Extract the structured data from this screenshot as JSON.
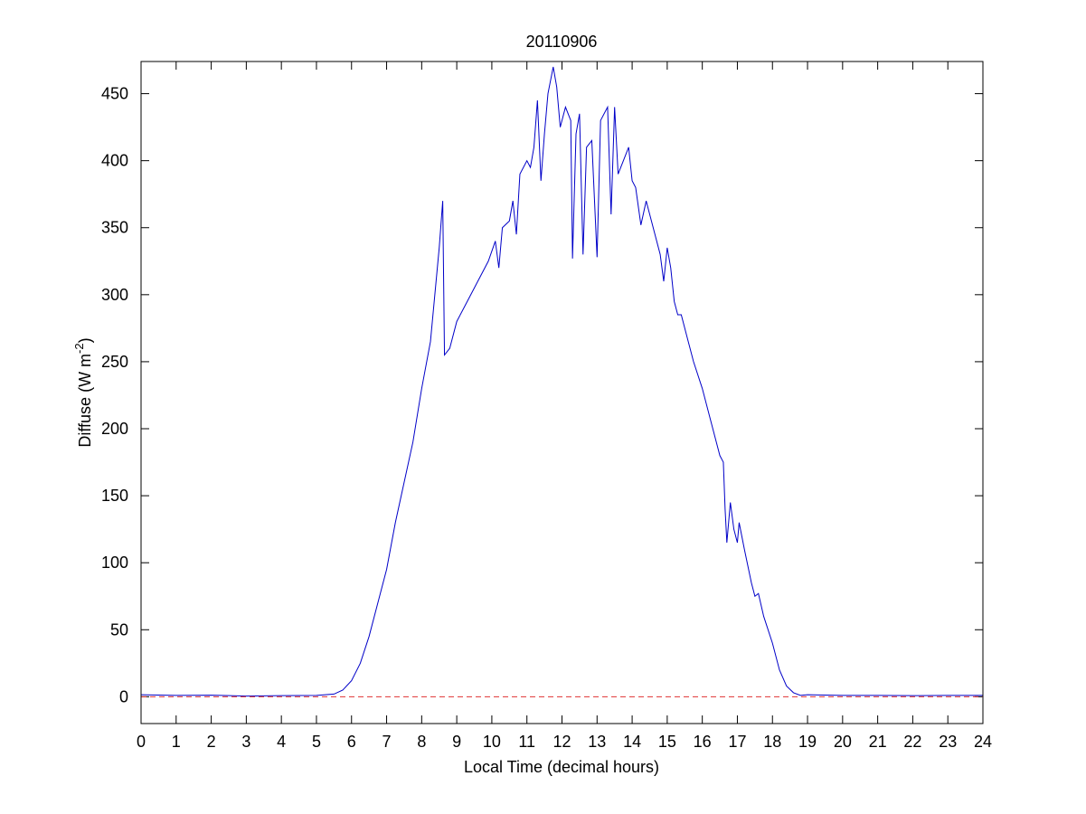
{
  "chart_data": {
    "type": "line",
    "title": "20110906",
    "xlabel": "Local Time (decimal hours)",
    "ylabel": [
      "Diffuse (W m",
      "-2",
      ")"
    ],
    "x": [
      0,
      1,
      2,
      3,
      4,
      5,
      5.5,
      5.75,
      6,
      6.25,
      6.5,
      6.75,
      7,
      7.25,
      7.5,
      7.75,
      8,
      8.25,
      8.5,
      8.6,
      8.65,
      8.8,
      9,
      9.3,
      9.6,
      9.9,
      10.1,
      10.2,
      10.3,
      10.5,
      10.6,
      10.7,
      10.8,
      11,
      11.1,
      11.2,
      11.3,
      11.4,
      11.5,
      11.6,
      11.75,
      11.85,
      11.95,
      12.1,
      12.25,
      12.3,
      12.4,
      12.5,
      12.6,
      12.7,
      12.85,
      13,
      13.1,
      13.3,
      13.4,
      13.5,
      13.6,
      13.75,
      13.9,
      14,
      14.1,
      14.25,
      14.4,
      14.6,
      14.8,
      14.9,
      15,
      15.1,
      15.2,
      15.3,
      15.4,
      15.6,
      15.75,
      16,
      16.2,
      16.4,
      16.5,
      16.6,
      16.65,
      16.7,
      16.8,
      16.9,
      17,
      17.05,
      17.2,
      17.4,
      17.5,
      17.6,
      17.75,
      18,
      18.2,
      18.4,
      18.6,
      18.8,
      19,
      20,
      21,
      22,
      23,
      24
    ],
    "series": [
      {
        "color": "#0000c8",
        "values": [
          1.5,
          1,
          1.2,
          0.5,
          0.8,
          1,
          2,
          5,
          12,
          25,
          45,
          70,
          95,
          130,
          160,
          190,
          230,
          265,
          335,
          370,
          255,
          260,
          280,
          295,
          310,
          325,
          340,
          320,
          350,
          355,
          370,
          345,
          390,
          400,
          395,
          410,
          445,
          385,
          420,
          450,
          470,
          455,
          425,
          440,
          430,
          327,
          420,
          435,
          330,
          410,
          415,
          328,
          430,
          440,
          360,
          440,
          390,
          400,
          410,
          385,
          380,
          352,
          370,
          350,
          330,
          310,
          335,
          320,
          295,
          285,
          285,
          265,
          250,
          230,
          210,
          190,
          180,
          175,
          140,
          115,
          145,
          125,
          115,
          130,
          110,
          85,
          75,
          77,
          60,
          40,
          20,
          8,
          3,
          1,
          1.5,
          1,
          1,
          0.8,
          1,
          1
        ]
      }
    ],
    "reference_line": {
      "y": 0,
      "color": "#e03030",
      "style": "dashed"
    },
    "xlim": [
      0,
      24
    ],
    "xticks": [
      0,
      1,
      2,
      3,
      4,
      5,
      6,
      7,
      8,
      9,
      10,
      11,
      12,
      13,
      14,
      15,
      16,
      17,
      18,
      19,
      20,
      21,
      22,
      23,
      24
    ],
    "ylim": [
      -20,
      474
    ],
    "yticks": [
      0,
      50,
      100,
      150,
      200,
      250,
      300,
      350,
      400,
      450
    ]
  }
}
